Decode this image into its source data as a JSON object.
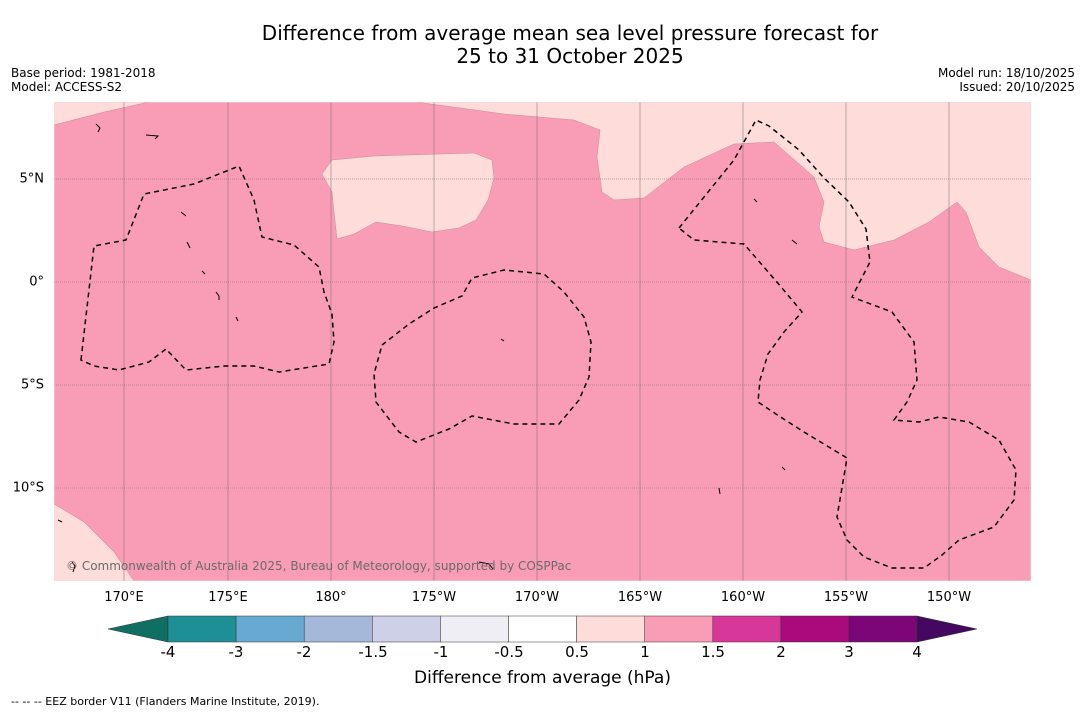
{
  "title_line1": "Difference from average mean sea level pressure forecast for",
  "title_line2": "25 to 31 October 2025",
  "base_period": "Base period: 1981-2018",
  "model": "Model: ACCESS-S2",
  "model_run": "Model run: 18/10/2025",
  "issued": "Issued: 20/10/2025",
  "copyright": "© Commonwealth of Australia 2025, Bureau of Meteorology, supported by COSPPac",
  "longitude_ticks": [
    "170°E",
    "175°E",
    "180°",
    "175°W",
    "170°W",
    "165°W",
    "160°W",
    "155°W",
    "150°W"
  ],
  "latitude_ticks": [
    "5°N",
    "0°",
    "5°S",
    "10°S"
  ],
  "legend": {
    "title": "Difference from average (hPa)",
    "labels": [
      "-4",
      "-3",
      "-2",
      "-1.5",
      "-1",
      "-0.5",
      "0.5",
      "1",
      "1.5",
      "2",
      "3",
      "4"
    ],
    "colors": [
      "#1f8f96",
      "#67a9d0",
      "#a5b8da",
      "#cdd0e6",
      "#efeef4",
      "#ffffff",
      "#fddcda",
      "#f99db6",
      "#d8379a",
      "#ab0a7c",
      "#7c0677"
    ],
    "under_color": "#0f6f63",
    "over_color": "#450860"
  },
  "footnote": "-- -- -- EEZ border V11 (Flanders Marine Institute, 2019)."
}
